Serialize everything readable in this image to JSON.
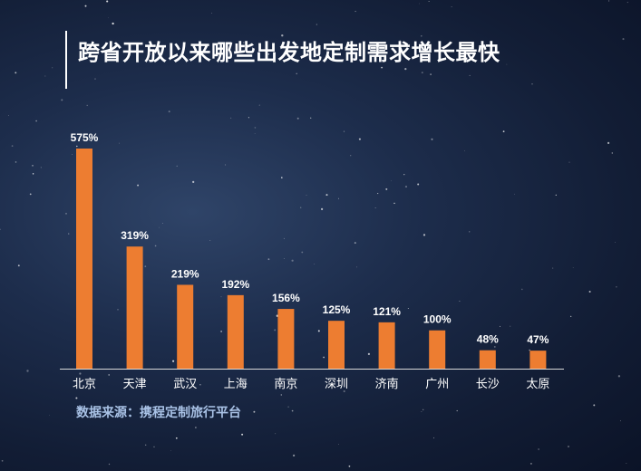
{
  "header": {
    "title": "跨省开放以来哪些出发地定制需求增长最快"
  },
  "footer": {
    "source": "数据来源：携程定制旅行平台"
  },
  "colors": {
    "bar": "#ED7D31",
    "text": "#ffffff",
    "source_text": "#a9c2e6"
  },
  "chart_data": {
    "type": "bar",
    "categories": [
      "北京",
      "天津",
      "武汉",
      "上海",
      "南京",
      "深圳",
      "济南",
      "广州",
      "长沙",
      "太原"
    ],
    "values": [
      575,
      319,
      219,
      192,
      156,
      125,
      121,
      100,
      48,
      47
    ],
    "value_labels": [
      "575%",
      "319%",
      "219%",
      "192%",
      "156%",
      "125%",
      "121%",
      "100%",
      "48%",
      "47%"
    ],
    "title": "跨省开放以来哪些出发地定制需求增长最快",
    "xlabel": "",
    "ylabel": "",
    "ylim": [
      0,
      575
    ],
    "grid": false,
    "legend": "none"
  }
}
